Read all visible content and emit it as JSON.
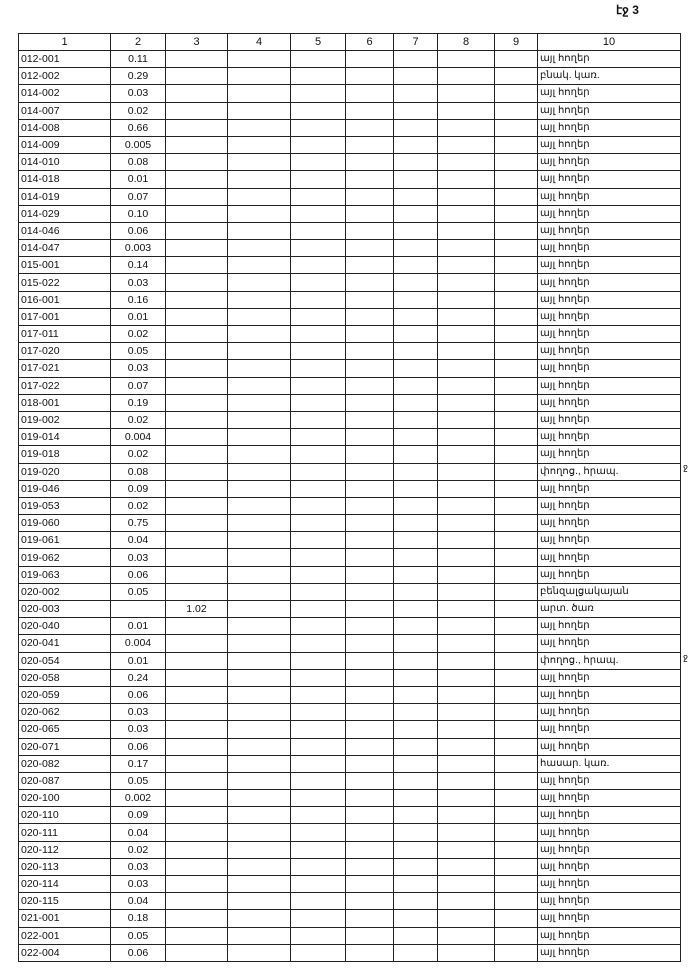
{
  "page_label": "էջ 3",
  "columns": [
    "1",
    "2",
    "3",
    "4",
    "5",
    "6",
    "7",
    "8",
    "9",
    "10"
  ],
  "rows": [
    [
      "012-001",
      "0.11",
      "",
      "այլ հողեր"
    ],
    [
      "012-002",
      "0.29",
      "",
      "բնակ. կառ."
    ],
    [
      "014-002",
      "0.03",
      "",
      "այլ հողեր"
    ],
    [
      "014-007",
      "0.02",
      "",
      "այլ հողեր"
    ],
    [
      "014-008",
      "0.66",
      "",
      "այլ հողեր"
    ],
    [
      "014-009",
      "0.005",
      "",
      "այլ հողեր"
    ],
    [
      "014-010",
      "0.08",
      "",
      "այլ հողեր"
    ],
    [
      "014-018",
      "0.01",
      "",
      "այլ հողեր"
    ],
    [
      "014-019",
      "0.07",
      "",
      "այլ հողեր"
    ],
    [
      "014-029",
      "0.10",
      "",
      "այլ հողեր"
    ],
    [
      "014-046",
      "0.06",
      "",
      "այլ հողեր"
    ],
    [
      "014-047",
      "0.003",
      "",
      "այլ հողեր"
    ],
    [
      "015-001",
      "0.14",
      "",
      "այլ հողեր"
    ],
    [
      "015-022",
      "0.03",
      "",
      "այլ հողեր"
    ],
    [
      "016-001",
      "0.16",
      "",
      "այլ հողեր"
    ],
    [
      "017-001",
      "0.01",
      "",
      "այլ հողեր"
    ],
    [
      "017-011",
      "0.02",
      "",
      "այլ հողեր"
    ],
    [
      "017-020",
      "0.05",
      "",
      "այլ հողեր"
    ],
    [
      "017-021",
      "0.03",
      "",
      "այլ հողեր"
    ],
    [
      "017-022",
      "0.07",
      "",
      "այլ հողեր"
    ],
    [
      "018-001",
      "0.19",
      "",
      "այլ հողեր"
    ],
    [
      "019-002",
      "0.02",
      "",
      "այլ հողեր"
    ],
    [
      "019-014",
      "0.004",
      "",
      "այլ հողեր"
    ],
    [
      "019-018",
      "0.02",
      "",
      "այլ հողեր"
    ],
    [
      "019-020",
      "0.08",
      "",
      "փողոց., հրապ."
    ],
    [
      "019-046",
      "0.09",
      "",
      "այլ հողեր"
    ],
    [
      "019-053",
      "0.02",
      "",
      "այլ հողեր"
    ],
    [
      "019-060",
      "0.75",
      "",
      "այլ հողեր"
    ],
    [
      "019-061",
      "0.04",
      "",
      "այլ հողեր"
    ],
    [
      "019-062",
      "0.03",
      "",
      "այլ հողեր"
    ],
    [
      "019-063",
      "0.06",
      "",
      "այլ հողեր"
    ],
    [
      "020-002",
      "0.05",
      "",
      "բենզալցակայան"
    ],
    [
      "020-003",
      "",
      "1.02",
      "արտ. ծառ"
    ],
    [
      "020-040",
      "0.01",
      "",
      "այլ հողեր"
    ],
    [
      "020-041",
      "0.004",
      "",
      "այլ հողեր"
    ],
    [
      "020-054",
      "0.01",
      "",
      "փողոց., հրապ."
    ],
    [
      "020-058",
      "0.24",
      "",
      "այլ հողեր"
    ],
    [
      "020-059",
      "0.06",
      "",
      "այլ հողեր"
    ],
    [
      "020-062",
      "0.03",
      "",
      "այլ հողեր"
    ],
    [
      "020-065",
      "0.03",
      "",
      "այլ հողեր"
    ],
    [
      "020-071",
      "0.06",
      "",
      "այլ հողեր"
    ],
    [
      "020-082",
      "0.17",
      "",
      "հասար. կառ."
    ],
    [
      "020-087",
      "0.05",
      "",
      "այլ հողեր"
    ],
    [
      "020-100",
      "0.002",
      "",
      "այլ հողեր"
    ],
    [
      "020-110",
      "0.09",
      "",
      "այլ հողեր"
    ],
    [
      "020-111",
      "0.04",
      "",
      "այլ հողեր"
    ],
    [
      "020-112",
      "0.02",
      "",
      "այլ հողեր"
    ],
    [
      "020-113",
      "0.03",
      "",
      "այլ հողեր"
    ],
    [
      "020-114",
      "0.03",
      "",
      "այլ հողեր"
    ],
    [
      "020-115",
      "0.04",
      "",
      "այլ հողեր"
    ],
    [
      "021-001",
      "0.18",
      "",
      "այլ հողեր"
    ],
    [
      "022-001",
      "0.05",
      "",
      "այլ հողեր"
    ],
    [
      "022-004",
      "0.06",
      "",
      "այլ հողեր"
    ]
  ],
  "side_marks": [
    "ջ",
    "ջ"
  ]
}
